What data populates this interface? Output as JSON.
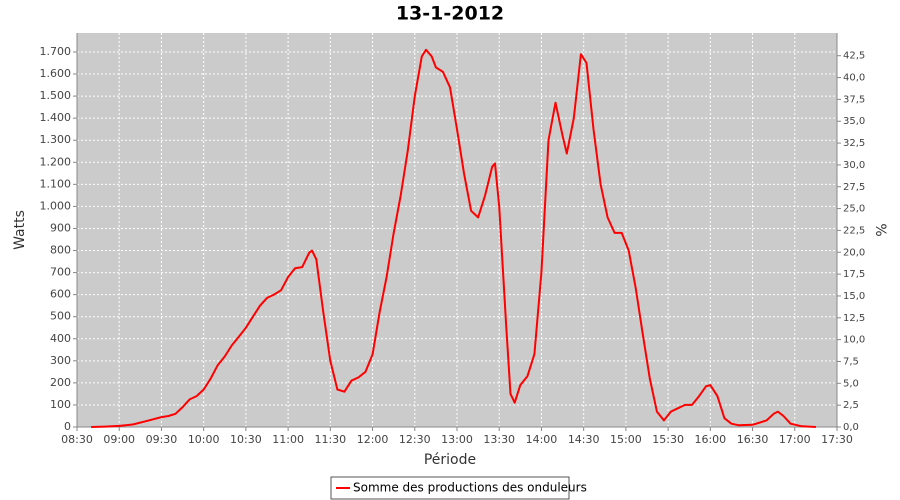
{
  "chart_data": {
    "type": "line",
    "title": "13-1-2012",
    "x_label": "Période",
    "y_label": "Watts",
    "y2_label": "%",
    "x": [
      "08:40",
      "08:50",
      "09:00",
      "09:10",
      "09:20",
      "09:30",
      "09:35",
      "09:40",
      "09:45",
      "09:50",
      "09:55",
      "10:00",
      "10:05",
      "10:10",
      "10:15",
      "10:20",
      "10:25",
      "10:30",
      "10:35",
      "10:40",
      "10:45",
      "10:50",
      "10:55",
      "11:00",
      "11:05",
      "11:10",
      "11:15",
      "11:17",
      "11:20",
      "11:25",
      "11:30",
      "11:35",
      "11:40",
      "11:45",
      "11:50",
      "11:55",
      "12:00",
      "12:05",
      "12:10",
      "12:15",
      "12:20",
      "12:25",
      "12:30",
      "12:35",
      "12:38",
      "12:42",
      "12:45",
      "12:50",
      "12:55",
      "13:00",
      "13:05",
      "13:10",
      "13:15",
      "13:20",
      "13:25",
      "13:27",
      "13:30",
      "13:35",
      "13:38",
      "13:41",
      "13:45",
      "13:50",
      "13:55",
      "14:00",
      "14:05",
      "14:10",
      "14:15",
      "14:18",
      "14:23",
      "14:28",
      "14:32",
      "14:37",
      "14:42",
      "14:47",
      "14:52",
      "14:57",
      "15:02",
      "15:07",
      "15:12",
      "15:17",
      "15:22",
      "15:27",
      "15:32",
      "15:37",
      "15:42",
      "15:47",
      "15:52",
      "15:57",
      "16:00",
      "16:05",
      "16:10",
      "16:15",
      "16:20",
      "16:30",
      "16:40",
      "16:45",
      "16:48",
      "16:52",
      "16:57",
      "17:05",
      "17:15"
    ],
    "series": [
      {
        "name": "Somme des productions des onduleurs",
        "color": "#ff0000",
        "values": [
          0,
          2,
          5,
          12,
          28,
          45,
          50,
          60,
          90,
          125,
          140,
          170,
          220,
          280,
          320,
          370,
          410,
          450,
          500,
          550,
          585,
          600,
          620,
          680,
          720,
          725,
          790,
          800,
          760,
          520,
          300,
          170,
          160,
          210,
          225,
          250,
          330,
          520,
          680,
          880,
          1050,
          1250,
          1500,
          1680,
          1710,
          1680,
          1630,
          1610,
          1540,
          1350,
          1150,
          980,
          950,
          1050,
          1180,
          1195,
          1000,
          450,
          150,
          110,
          190,
          230,
          330,
          700,
          1300,
          1470,
          1320,
          1240,
          1400,
          1690,
          1650,
          1350,
          1100,
          950,
          880,
          880,
          800,
          630,
          420,
          220,
          70,
          30,
          70,
          85,
          100,
          100,
          140,
          185,
          190,
          140,
          40,
          15,
          8,
          10,
          30,
          60,
          70,
          50,
          15,
          3,
          0
        ]
      }
    ],
    "xlim": [
      "08:30",
      "17:30"
    ],
    "xticks": [
      "08:30",
      "09:00",
      "09:30",
      "10:00",
      "10:30",
      "11:00",
      "11:30",
      "12:00",
      "12:30",
      "13:00",
      "13:30",
      "14:00",
      "14:30",
      "15:00",
      "15:30",
      "16:00",
      "16:30",
      "17:00",
      "17:30"
    ],
    "ylim": [
      0,
      1786
    ],
    "yticks": [
      0,
      100,
      200,
      300,
      400,
      500,
      600,
      700,
      800,
      900,
      {
        "value": 1000,
        "label": "1.000"
      },
      {
        "value": 1100,
        "label": "1.100"
      },
      {
        "value": 1200,
        "label": "1.200"
      },
      {
        "value": 1300,
        "label": "1.300"
      },
      {
        "value": 1400,
        "label": "1.400"
      },
      {
        "value": 1500,
        "label": "1.500"
      },
      {
        "value": 1600,
        "label": "1.600"
      },
      {
        "value": 1700,
        "label": "1.700"
      }
    ],
    "y2lim": [
      0,
      45.1
    ],
    "y2ticks": [
      {
        "value": 0,
        "label": "0,0"
      },
      {
        "value": 2.5,
        "label": "2,5"
      },
      {
        "value": 5,
        "label": "5,0"
      },
      {
        "value": 7.5,
        "label": "7,5"
      },
      {
        "value": 10,
        "label": "10,0"
      },
      {
        "value": 12.5,
        "label": "12,5"
      },
      {
        "value": 15,
        "label": "15,0"
      },
      {
        "value": 17.5,
        "label": "17,5"
      },
      {
        "value": 20,
        "label": "20,0"
      },
      {
        "value": 22.5,
        "label": "22,5"
      },
      {
        "value": 25,
        "label": "25,0"
      },
      {
        "value": 27.5,
        "label": "27,5"
      },
      {
        "value": 30,
        "label": "30,0"
      },
      {
        "value": 32.5,
        "label": "32,5"
      },
      {
        "value": 35,
        "label": "35,0"
      },
      {
        "value": 37.5,
        "label": "37,5"
      },
      {
        "value": 40,
        "label": "40,0"
      },
      {
        "value": 42.5,
        "label": "42,5"
      }
    ],
    "grid": true
  }
}
